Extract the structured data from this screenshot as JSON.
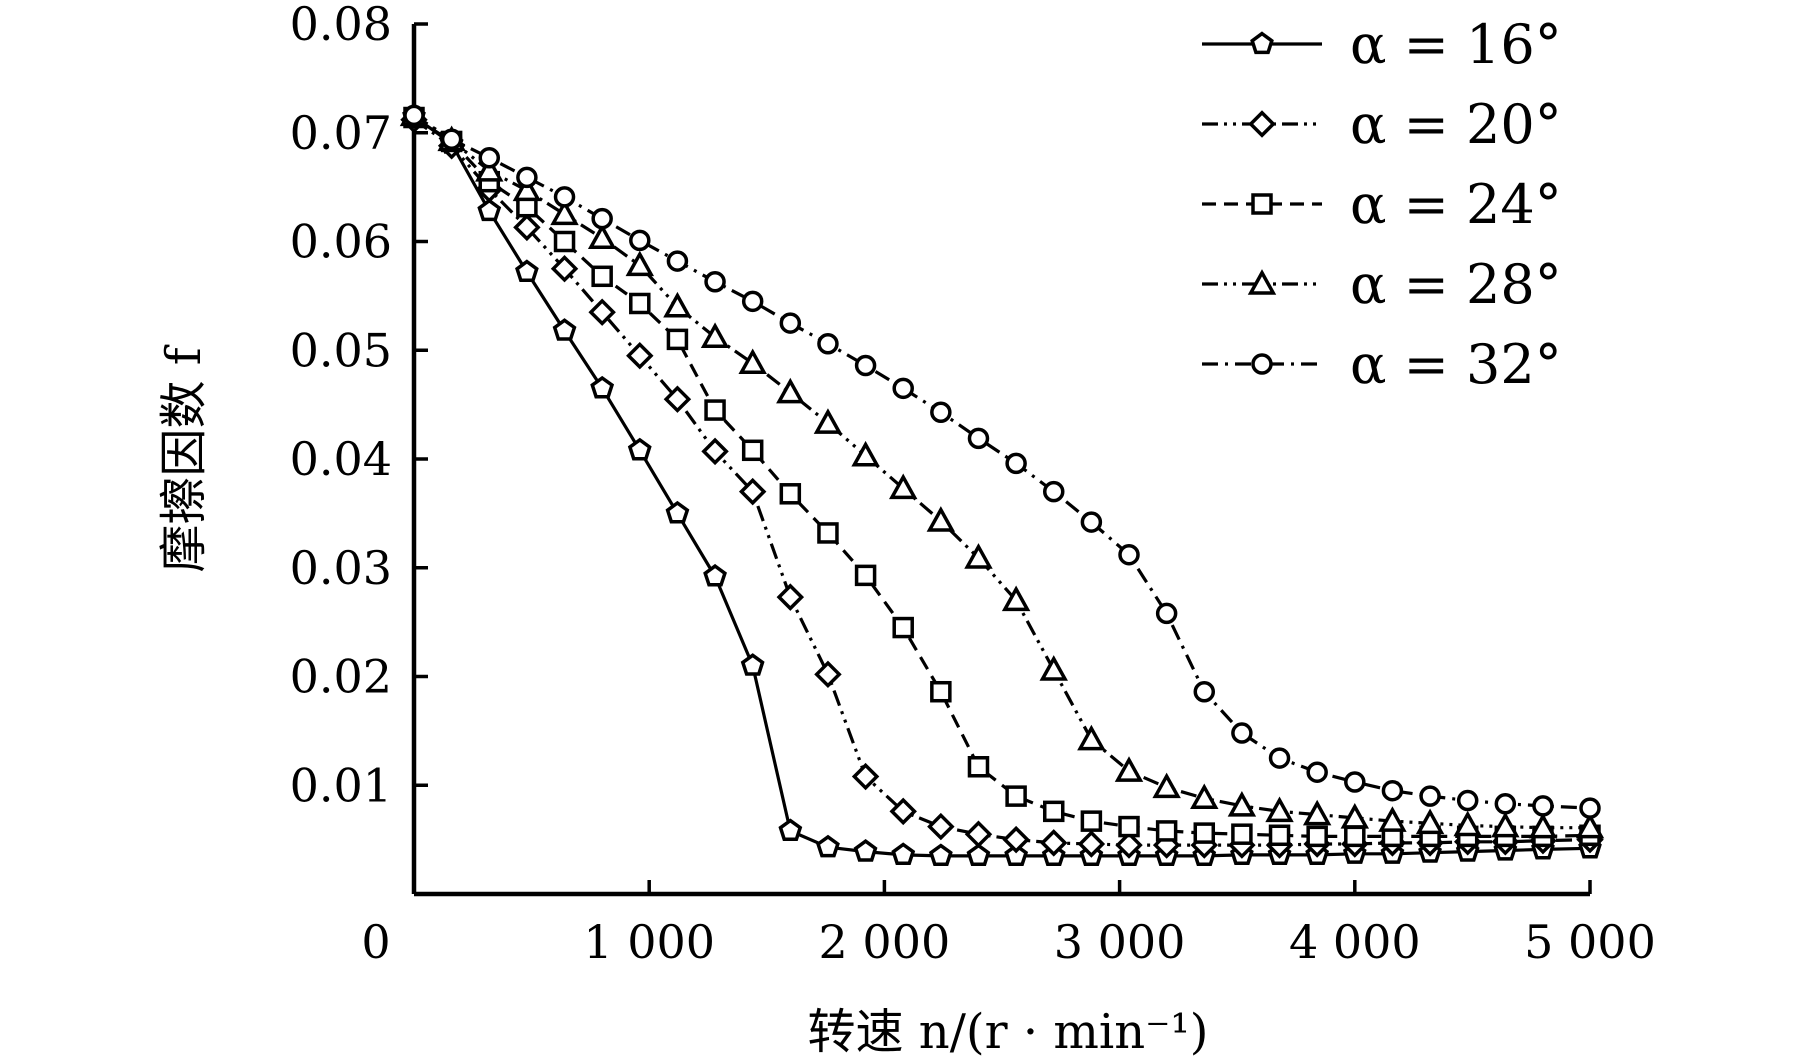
{
  "chart_data": {
    "type": "line",
    "title": "",
    "xlabel": "转速 n/(r · min⁻¹)",
    "ylabel": "摩擦因数 f",
    "xlim": [
      0,
      5000
    ],
    "ylim": [
      0,
      0.08
    ],
    "x_ticks": [
      "0",
      "1 000",
      "2 000",
      "3 000",
      "4 000",
      "5 000"
    ],
    "y_ticks": [
      "0.01",
      "0.02",
      "0.03",
      "0.04",
      "0.05",
      "0.06",
      "0.07",
      "0.08"
    ],
    "grid": false,
    "legend_position": "top-right",
    "x": [
      0,
      160,
      320,
      480,
      640,
      800,
      960,
      1120,
      1280,
      1440,
      1600,
      1760,
      1920,
      2080,
      2240,
      2400,
      2560,
      2720,
      2880,
      3040,
      3200,
      3360,
      3520,
      3680,
      3840,
      4000,
      4160,
      4320,
      4480,
      4640,
      4800,
      5000
    ],
    "series": [
      {
        "name": "α = 16°",
        "marker": "pentagon",
        "dash": "solid",
        "values": [
          0.0715,
          0.069,
          0.0628,
          0.0572,
          0.0518,
          0.0465,
          0.0408,
          0.035,
          0.0292,
          0.021,
          0.0058,
          0.0043,
          0.0039,
          0.0036,
          0.0035,
          0.0035,
          0.0035,
          0.0035,
          0.0035,
          0.0035,
          0.0035,
          0.0035,
          0.0036,
          0.0036,
          0.0036,
          0.0037,
          0.0037,
          0.0038,
          0.0039,
          0.004,
          0.0041,
          0.0042
        ]
      },
      {
        "name": "α = 20°",
        "marker": "diamond",
        "dash": "dashdotdot",
        "values": [
          0.0712,
          0.0688,
          0.0648,
          0.0613,
          0.0575,
          0.0535,
          0.0495,
          0.0455,
          0.0407,
          0.037,
          0.0273,
          0.0202,
          0.0108,
          0.0076,
          0.0062,
          0.0055,
          0.005,
          0.0047,
          0.0046,
          0.0045,
          0.0045,
          0.0045,
          0.0045,
          0.0045,
          0.0046,
          0.0046,
          0.0047,
          0.0047,
          0.0048,
          0.0048,
          0.0049,
          0.005
        ]
      },
      {
        "name": "α = 24°",
        "marker": "square",
        "dash": "dashed",
        "values": [
          0.0714,
          0.0692,
          0.0655,
          0.0632,
          0.06,
          0.0568,
          0.0543,
          0.051,
          0.0445,
          0.0408,
          0.0368,
          0.0332,
          0.0293,
          0.0245,
          0.0186,
          0.0117,
          0.009,
          0.0076,
          0.0067,
          0.0062,
          0.0058,
          0.0056,
          0.0055,
          0.0054,
          0.0053,
          0.0053,
          0.0053,
          0.0053,
          0.0053,
          0.0053,
          0.0053,
          0.0054
        ]
      },
      {
        "name": "α = 28°",
        "marker": "triangle",
        "dash": "dashdotdot",
        "values": [
          0.0716,
          0.0693,
          0.0665,
          0.0647,
          0.0625,
          0.0603,
          0.0578,
          0.054,
          0.0512,
          0.0488,
          0.0461,
          0.0433,
          0.0403,
          0.0373,
          0.0343,
          0.0309,
          0.027,
          0.0206,
          0.0142,
          0.0113,
          0.0098,
          0.0088,
          0.0081,
          0.0076,
          0.0073,
          0.007,
          0.0067,
          0.0065,
          0.0063,
          0.0062,
          0.0061,
          0.0061
        ]
      },
      {
        "name": "α = 32°",
        "marker": "circle",
        "dash": "dashdot",
        "values": [
          0.0716,
          0.0694,
          0.0677,
          0.0659,
          0.0641,
          0.0621,
          0.0601,
          0.0582,
          0.0563,
          0.0545,
          0.0525,
          0.0506,
          0.0486,
          0.0465,
          0.0443,
          0.0419,
          0.0396,
          0.037,
          0.0342,
          0.0312,
          0.0258,
          0.0186,
          0.0148,
          0.0125,
          0.0112,
          0.0103,
          0.0095,
          0.009,
          0.0086,
          0.0083,
          0.0081,
          0.0079
        ]
      }
    ]
  }
}
